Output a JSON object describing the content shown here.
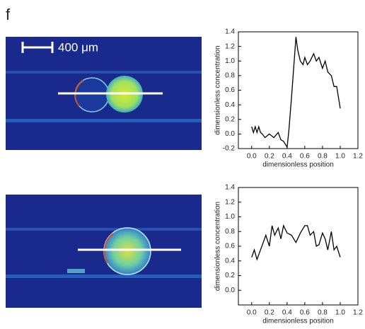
{
  "panel_label": "f",
  "scale_bar": "400 μm",
  "chart_data": [
    {
      "type": "line",
      "xlabel": "dimensionless position",
      "ylabel": "dimensionless concentration",
      "xlim": [
        -0.15,
        1.2
      ],
      "ylim": [
        -0.2,
        1.4
      ],
      "xticks": [
        {
          "value": 0,
          "label": "0.0"
        },
        0.2,
        0.4,
        0.6,
        0.8,
        {
          "value": 1,
          "label": "1.0"
        },
        1.2
      ],
      "yticks": [
        -0.2,
        {
          "value": 0,
          "label": "0.0"
        },
        0.2,
        0.4,
        0.6,
        0.8,
        {
          "value": 1,
          "label": "1.0"
        },
        1.2,
        1.4
      ],
      "series": [
        {
          "color": "#000000",
          "x": [
            0,
            0.02,
            0.04,
            0.06,
            0.08,
            0.1,
            0.12,
            0.15,
            0.2,
            0.25,
            0.3,
            0.33,
            0.36,
            0.4,
            0.42,
            0.45,
            0.48,
            0.5,
            0.52,
            0.55,
            0.58,
            0.6,
            0.63,
            0.66,
            0.7,
            0.73,
            0.76,
            0.8,
            0.83,
            0.86,
            0.9,
            0.93,
            0.96,
            1.0
          ],
          "values": [
            0.1,
            0.02,
            0.1,
            0.02,
            0.1,
            0.02,
            0.0,
            -0.05,
            0.0,
            -0.05,
            0.02,
            -0.08,
            -0.1,
            -0.18,
            0.05,
            0.5,
            1.0,
            1.33,
            1.15,
            1.0,
            0.95,
            1.05,
            0.95,
            1.0,
            1.1,
            1.0,
            1.05,
            0.9,
            1.0,
            0.85,
            0.8,
            0.65,
            0.65,
            0.35
          ]
        }
      ]
    },
    {
      "type": "line",
      "xlabel": "dimensionless position",
      "ylabel": "dimensionless concentration",
      "xlim": [
        -0.15,
        1.2
      ],
      "ylim": [
        -0.2,
        1.4
      ],
      "xticks": [
        {
          "value": 0,
          "label": "0.0"
        },
        0.2,
        0.4,
        0.6,
        0.8,
        {
          "value": 1,
          "label": "1.0"
        },
        1.2
      ],
      "yticks": [
        {
          "value": 0,
          "label": "0.0"
        },
        0.2,
        0.4,
        0.6,
        0.8,
        {
          "value": 1,
          "label": "1.0"
        },
        1.2,
        1.4
      ],
      "series": [
        {
          "color": "#000000",
          "x": [
            0,
            0.03,
            0.06,
            0.1,
            0.13,
            0.16,
            0.2,
            0.23,
            0.26,
            0.3,
            0.33,
            0.36,
            0.4,
            0.45,
            0.5,
            0.55,
            0.6,
            0.63,
            0.66,
            0.7,
            0.73,
            0.76,
            0.8,
            0.83,
            0.86,
            0.9,
            0.93,
            0.96,
            1.0
          ],
          "values": [
            0.45,
            0.55,
            0.42,
            0.55,
            0.65,
            0.75,
            0.6,
            0.88,
            0.75,
            0.85,
            0.7,
            0.88,
            0.78,
            0.75,
            0.65,
            0.78,
            0.88,
            0.88,
            0.75,
            0.8,
            0.6,
            0.62,
            0.78,
            0.7,
            0.55,
            0.8,
            0.55,
            0.6,
            0.45
          ]
        }
      ]
    }
  ]
}
